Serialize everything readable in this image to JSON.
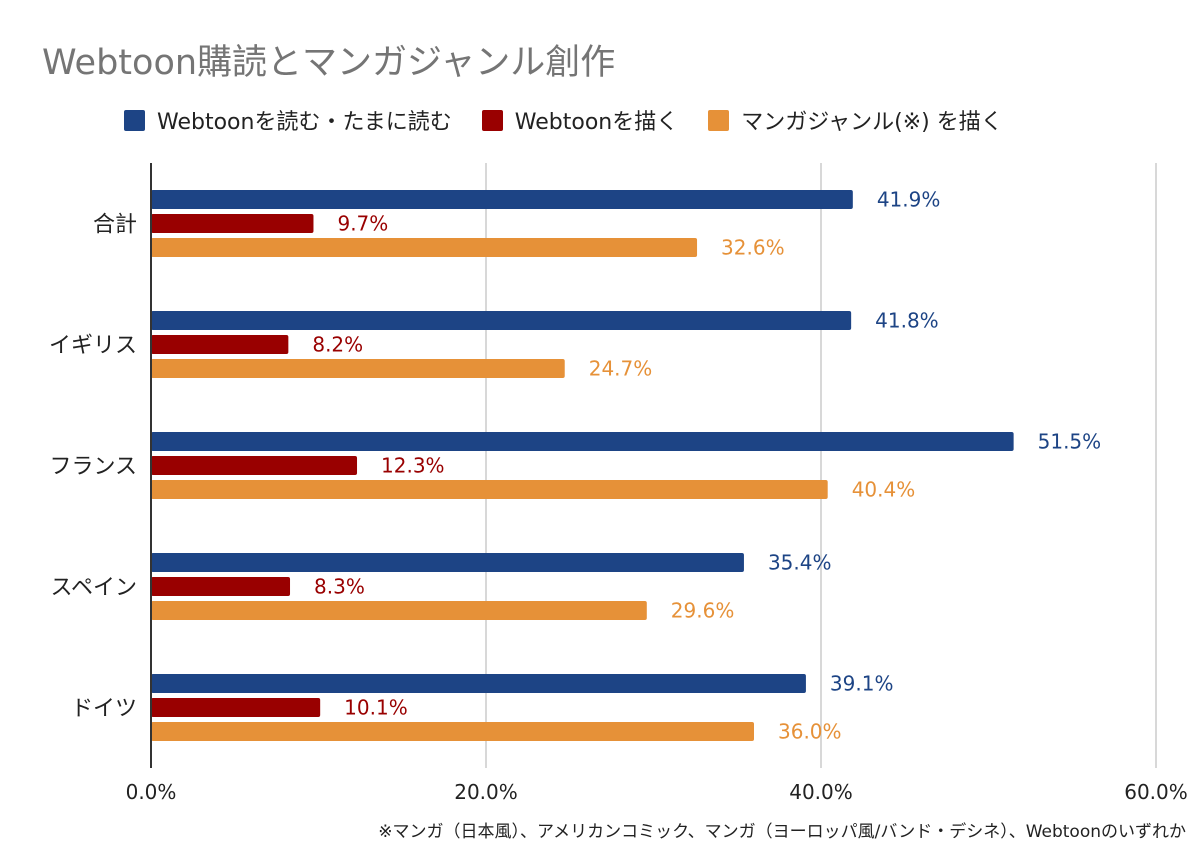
{
  "chart_data": {
    "type": "bar",
    "orientation": "horizontal",
    "title": "Webtoon購読とマンガジャンル創作",
    "categories": [
      "合計",
      "イギリス",
      "フランス",
      "スペイン",
      "ドイツ"
    ],
    "series": [
      {
        "name": "Webtoonを読む・たまに読む",
        "color": "#1d4485",
        "values": [
          41.9,
          41.8,
          51.5,
          35.4,
          39.1
        ]
      },
      {
        "name": "Webtoonを描く",
        "color": "#990000",
        "values": [
          9.7,
          8.2,
          12.3,
          8.3,
          10.1
        ]
      },
      {
        "name": "マンガジャンル(※) を描く",
        "color": "#e69138",
        "values": [
          32.6,
          24.7,
          40.4,
          29.6,
          36.0
        ]
      }
    ],
    "xlim": [
      0,
      60
    ],
    "xticks": [
      "0.0%",
      "20.0%",
      "40.0%",
      "60.0%"
    ],
    "xtick_values": [
      0,
      20,
      40,
      60
    ],
    "value_format": "percent_1dp",
    "legend": "top",
    "grid": true,
    "footnote": "※マンガ（日本風）、アメリカンコミック、マンガ（ヨーロッパ風/バンド・デシネ）、Webtoonのいずれか"
  }
}
